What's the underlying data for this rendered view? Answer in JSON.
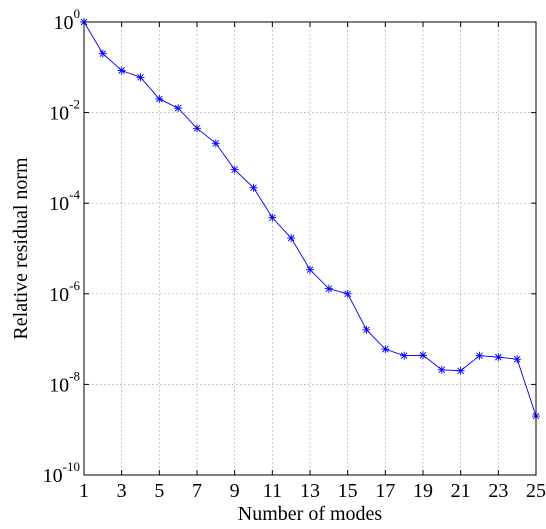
{
  "chart_data": {
    "type": "line",
    "title": "",
    "xlabel": "Number of modes",
    "ylabel": "Relative residual norm",
    "xlim": [
      1,
      25
    ],
    "ylim": [
      1e-10,
      1
    ],
    "yscale": "log",
    "grid": true,
    "marker": "asterisk",
    "line_color": "#0000ff",
    "x_ticks": [
      "1",
      "3",
      "5",
      "7",
      "9",
      "11",
      "13",
      "15",
      "17",
      "19",
      "21",
      "23",
      "25"
    ],
    "y_ticks": [
      {
        "base": "10",
        "exp": "0"
      },
      {
        "base": "10",
        "exp": "-2"
      },
      {
        "base": "10",
        "exp": "-4"
      },
      {
        "base": "10",
        "exp": "-6"
      },
      {
        "base": "10",
        "exp": "-8"
      },
      {
        "base": "10",
        "exp": "-10"
      }
    ],
    "series": [
      {
        "x": [
          1,
          2,
          3,
          4,
          5,
          6,
          7,
          8,
          9,
          10,
          11,
          12,
          13,
          14,
          15,
          16,
          17,
          18,
          19,
          20,
          21,
          22,
          23,
          24,
          25
        ],
        "values": [
          1.0,
          0.2,
          0.085,
          0.06,
          0.02,
          0.0125,
          0.0045,
          0.0021,
          0.00055,
          0.00022,
          4.8e-05,
          1.7e-05,
          3.4e-06,
          1.3e-06,
          1e-06,
          1.6e-07,
          6e-08,
          4.3e-08,
          4.4e-08,
          2.1e-08,
          2e-08,
          4.3e-08,
          4e-08,
          3.6e-08,
          2e-09
        ]
      }
    ]
  }
}
